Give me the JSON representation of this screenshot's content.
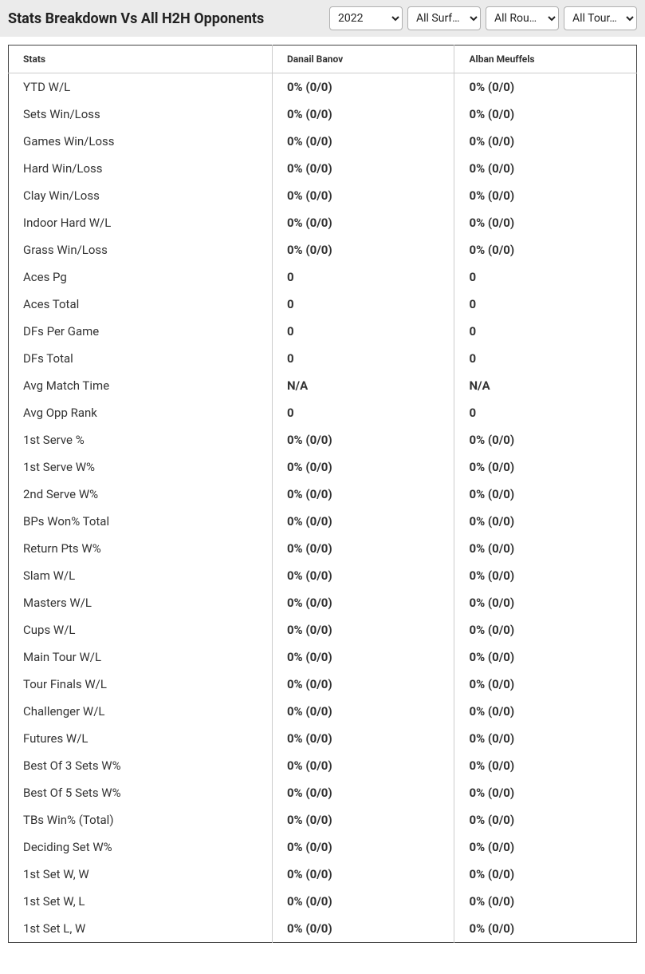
{
  "header": {
    "title": "Stats Breakdown Vs All H2H Opponents",
    "filters": {
      "year": "2022",
      "surface": "All Surf…",
      "round": "All Rou…",
      "tour": "All Tour…"
    }
  },
  "table": {
    "columns": {
      "stats": "Stats",
      "player1": "Danail Banov",
      "player2": "Alban Meuffels"
    },
    "rows": [
      {
        "stat": "YTD W/L",
        "p1": "0% (0/0)",
        "p2": "0% (0/0)"
      },
      {
        "stat": "Sets Win/Loss",
        "p1": "0% (0/0)",
        "p2": "0% (0/0)"
      },
      {
        "stat": "Games Win/Loss",
        "p1": "0% (0/0)",
        "p2": "0% (0/0)"
      },
      {
        "stat": "Hard Win/Loss",
        "p1": "0% (0/0)",
        "p2": "0% (0/0)"
      },
      {
        "stat": "Clay Win/Loss",
        "p1": "0% (0/0)",
        "p2": "0% (0/0)"
      },
      {
        "stat": "Indoor Hard W/L",
        "p1": "0% (0/0)",
        "p2": "0% (0/0)"
      },
      {
        "stat": "Grass Win/Loss",
        "p1": "0% (0/0)",
        "p2": "0% (0/0)"
      },
      {
        "stat": "Aces Pg",
        "p1": "0",
        "p2": "0"
      },
      {
        "stat": "Aces Total",
        "p1": "0",
        "p2": "0"
      },
      {
        "stat": "DFs Per Game",
        "p1": "0",
        "p2": "0"
      },
      {
        "stat": "DFs Total",
        "p1": "0",
        "p2": "0"
      },
      {
        "stat": "Avg Match Time",
        "p1": "N/A",
        "p2": "N/A"
      },
      {
        "stat": "Avg Opp Rank",
        "p1": "0",
        "p2": "0"
      },
      {
        "stat": "1st Serve %",
        "p1": "0% (0/0)",
        "p2": "0% (0/0)"
      },
      {
        "stat": "1st Serve W%",
        "p1": "0% (0/0)",
        "p2": "0% (0/0)"
      },
      {
        "stat": "2nd Serve W%",
        "p1": "0% (0/0)",
        "p2": "0% (0/0)"
      },
      {
        "stat": "BPs Won% Total",
        "p1": "0% (0/0)",
        "p2": "0% (0/0)"
      },
      {
        "stat": "Return Pts W%",
        "p1": "0% (0/0)",
        "p2": "0% (0/0)"
      },
      {
        "stat": "Slam W/L",
        "p1": "0% (0/0)",
        "p2": "0% (0/0)"
      },
      {
        "stat": "Masters W/L",
        "p1": "0% (0/0)",
        "p2": "0% (0/0)"
      },
      {
        "stat": "Cups W/L",
        "p1": "0% (0/0)",
        "p2": "0% (0/0)"
      },
      {
        "stat": "Main Tour W/L",
        "p1": "0% (0/0)",
        "p2": "0% (0/0)"
      },
      {
        "stat": "Tour Finals W/L",
        "p1": "0% (0/0)",
        "p2": "0% (0/0)"
      },
      {
        "stat": "Challenger W/L",
        "p1": "0% (0/0)",
        "p2": "0% (0/0)"
      },
      {
        "stat": "Futures W/L",
        "p1": "0% (0/0)",
        "p2": "0% (0/0)"
      },
      {
        "stat": "Best Of 3 Sets W%",
        "p1": "0% (0/0)",
        "p2": "0% (0/0)"
      },
      {
        "stat": "Best Of 5 Sets W%",
        "p1": "0% (0/0)",
        "p2": "0% (0/0)"
      },
      {
        "stat": "TBs Win% (Total)",
        "p1": "0% (0/0)",
        "p2": "0% (0/0)"
      },
      {
        "stat": "Deciding Set W%",
        "p1": "0% (0/0)",
        "p2": "0% (0/0)"
      },
      {
        "stat": "1st Set W, W",
        "p1": "0% (0/0)",
        "p2": "0% (0/0)"
      },
      {
        "stat": "1st Set W, L",
        "p1": "0% (0/0)",
        "p2": "0% (0/0)"
      },
      {
        "stat": "1st Set L, W",
        "p1": "0% (0/0)",
        "p2": "0% (0/0)"
      }
    ]
  },
  "styling": {
    "header_bg": "#ebebeb",
    "title_color": "#222222",
    "title_fontsize": 18,
    "table_border": "#444444",
    "cell_border": "#cccccc",
    "header_fontsize": 12,
    "body_fontsize": 15,
    "text_color": "#333333",
    "select_border": "#b0b0b0",
    "body_bg": "#ffffff"
  }
}
